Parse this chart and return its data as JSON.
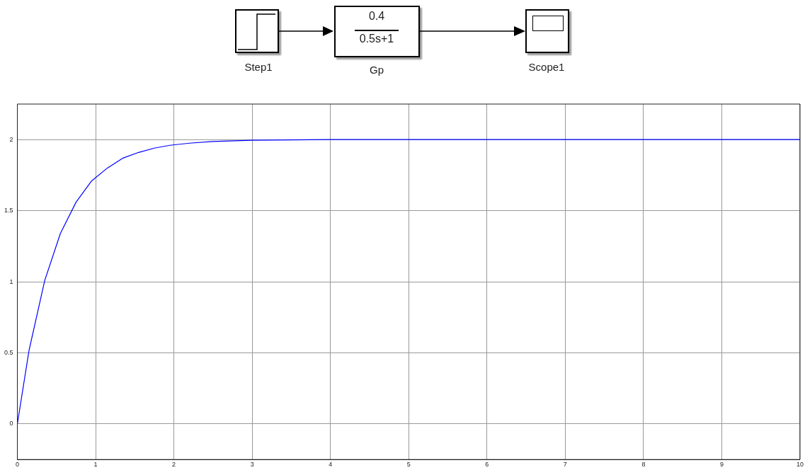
{
  "chart_data": {
    "type": "line",
    "x": [
      0,
      0.15,
      0.35,
      0.55,
      0.75,
      0.95,
      1.15,
      1.35,
      1.55,
      1.75,
      1.95,
      2.2,
      2.5,
      3,
      4,
      10
    ],
    "series": [
      {
        "color": "#0000ff",
        "values": [
          0,
          0.52,
          1.01,
          1.34,
          1.56,
          1.71,
          1.8,
          1.87,
          1.91,
          1.94,
          1.96,
          1.975,
          1.987,
          1.995,
          2,
          2
        ]
      }
    ],
    "xlim": [
      0,
      10
    ],
    "xticks": [
      0,
      1,
      2,
      3,
      4,
      5,
      6,
      7,
      8,
      9,
      10
    ],
    "ylim": [
      -0.25,
      2.25
    ],
    "yticks": [
      0,
      0.5,
      1,
      1.5,
      2
    ],
    "grid": true,
    "legend": false,
    "marker": "none",
    "line_style": "solid",
    "annotations": [
      "Step1",
      "0.4",
      "0.5s+1",
      "Gp",
      "Scope1"
    ]
  }
}
